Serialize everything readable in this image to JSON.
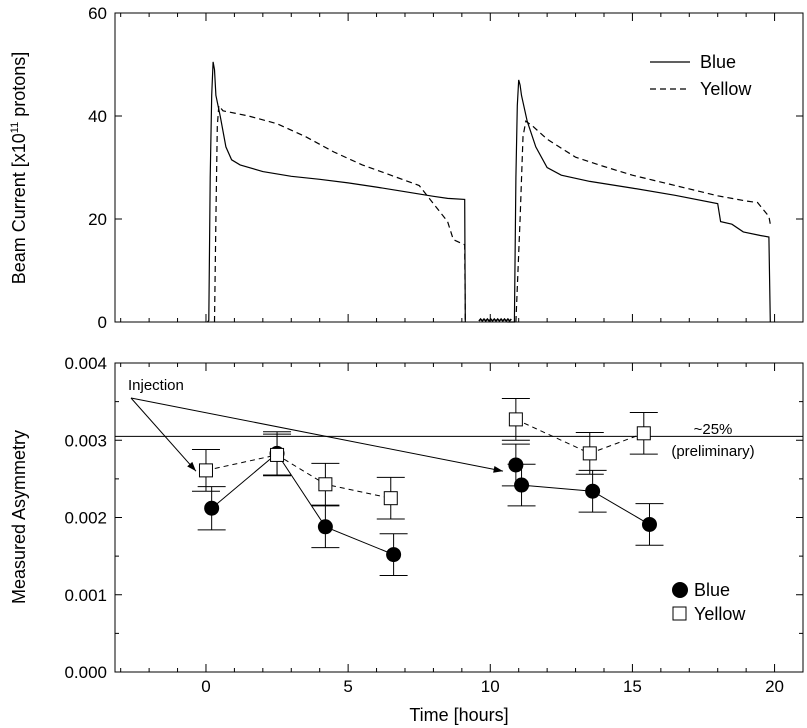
{
  "chart_data": [
    {
      "type": "line",
      "panel": "top",
      "ylabel": "Beam Current [x10",
      "ylabel_sup": "11",
      "ylabel_tail": " protons]",
      "xlim": [
        -3.2,
        21
      ],
      "ylim": [
        0,
        60
      ],
      "yticks": [
        "0",
        "20",
        "40",
        "60"
      ],
      "legend_position": "top-right",
      "series": [
        {
          "name": "Blue",
          "line_style": "solid",
          "points": [
            [
              0.05,
              0
            ],
            [
              0.1,
              0.3
            ],
            [
              0.15,
              28
            ],
            [
              0.2,
              44
            ],
            [
              0.25,
              50.5
            ],
            [
              0.3,
              49
            ],
            [
              0.35,
              44
            ],
            [
              0.5,
              40
            ],
            [
              0.7,
              34
            ],
            [
              0.9,
              31.5
            ],
            [
              1.2,
              30.5
            ],
            [
              2,
              29.2
            ],
            [
              3,
              28.3
            ],
            [
              4,
              27.7
            ],
            [
              5,
              27
            ],
            [
              6,
              26.2
            ],
            [
              7,
              25.3
            ],
            [
              8,
              24.4
            ],
            [
              8.5,
              24
            ],
            [
              9.1,
              23.8
            ],
            [
              9.12,
              0
            ]
          ]
        },
        {
          "name": "Yellow",
          "line_style": "dashed",
          "points": [
            [
              0.3,
              0
            ],
            [
              0.35,
              20
            ],
            [
              0.4,
              38
            ],
            [
              0.45,
              42
            ],
            [
              0.6,
              41
            ],
            [
              1.5,
              40
            ],
            [
              2.5,
              38.5
            ],
            [
              3.5,
              36
            ],
            [
              4.5,
              33
            ],
            [
              5.5,
              30.5
            ],
            [
              6.5,
              28.5
            ],
            [
              7.5,
              26.5
            ],
            [
              8,
              23
            ],
            [
              8.5,
              19.5
            ],
            [
              8.7,
              16
            ],
            [
              9.1,
              15
            ],
            [
              9.12,
              0
            ]
          ]
        },
        {
          "name": "Blue",
          "line_style": "solid",
          "points": [
            [
              10.6,
              0
            ],
            [
              10.85,
              0
            ],
            [
              10.9,
              28
            ],
            [
              10.95,
              42
            ],
            [
              11,
              47
            ],
            [
              11.05,
              46
            ],
            [
              11.1,
              44
            ],
            [
              11.3,
              39
            ],
            [
              11.6,
              34
            ],
            [
              12,
              30
            ],
            [
              12.5,
              28.5
            ],
            [
              13.5,
              27.3
            ],
            [
              15,
              26
            ],
            [
              16.5,
              24.6
            ],
            [
              18,
              23
            ],
            [
              18.1,
              19.5
            ],
            [
              18.5,
              19
            ],
            [
              18.9,
              17.5
            ],
            [
              19.5,
              16.8
            ],
            [
              19.8,
              16.5
            ],
            [
              19.85,
              0
            ]
          ]
        },
        {
          "name": "Yellow",
          "line_style": "dashed",
          "points": [
            [
              10.9,
              0
            ],
            [
              11.05,
              20
            ],
            [
              11.15,
              36
            ],
            [
              11.25,
              39
            ],
            [
              11.5,
              38
            ],
            [
              12,
              35.5
            ],
            [
              13,
              32
            ],
            [
              14,
              30.2
            ],
            [
              15,
              28.5
            ],
            [
              16.5,
              26.5
            ],
            [
              18,
              24.5
            ],
            [
              19,
              23.5
            ],
            [
              19.4,
              23.2
            ],
            [
              19.8,
              20.5
            ],
            [
              19.85,
              19
            ]
          ]
        }
      ],
      "noise_segment": {
        "x_start": 9.6,
        "x_end": 10.8
      }
    },
    {
      "type": "scatter",
      "panel": "bottom",
      "xlabel": "Time [hours]",
      "ylabel": "Measured Asymmetry",
      "xlim": [
        -3.2,
        21
      ],
      "ylim": [
        0,
        0.004
      ],
      "xticks": [
        "0",
        "5",
        "10",
        "15",
        "20"
      ],
      "yticks": [
        "0.000",
        "0.001",
        "0.002",
        "0.003",
        "0.004"
      ],
      "reference_line": {
        "y": 0.00305,
        "label_1": "~25%",
        "label_2": "(preliminary)"
      },
      "annotation": {
        "text": "Injection",
        "arrow_targets": [
          [
            0,
            0.0026
          ],
          [
            10.8,
            0.0026
          ]
        ]
      },
      "legend_position": "bottom-right",
      "series": [
        {
          "name": "Blue",
          "marker": "filled-circle",
          "points": [
            {
              "x": 0.2,
              "y": 0.00212,
              "err": 0.00028
            },
            {
              "x": 2.5,
              "y": 0.00283,
              "err": 0.00028
            },
            {
              "x": 4.2,
              "y": 0.00188,
              "err": 0.00027
            },
            {
              "x": 6.6,
              "y": 0.00152,
              "err": 0.00027
            },
            {
              "x": 10.9,
              "y": 0.00268,
              "err": 0.00027
            },
            {
              "x": 11.1,
              "y": 0.00242,
              "err": 0.00027
            },
            {
              "x": 13.6,
              "y": 0.00234,
              "err": 0.00027
            },
            {
              "x": 15.6,
              "y": 0.00191,
              "err": 0.00027
            }
          ]
        },
        {
          "name": "Yellow",
          "marker": "open-square",
          "points": [
            {
              "x": 0.0,
              "y": 0.00261,
              "err": 0.00027
            },
            {
              "x": 2.5,
              "y": 0.00281,
              "err": 0.00027
            },
            {
              "x": 4.2,
              "y": 0.00243,
              "err": 0.00027
            },
            {
              "x": 6.5,
              "y": 0.00225,
              "err": 0.00027
            },
            {
              "x": 10.9,
              "y": 0.00327,
              "err": 0.00027
            },
            {
              "x": 13.5,
              "y": 0.00283,
              "err": 0.00027
            },
            {
              "x": 15.4,
              "y": 0.00309,
              "err": 0.00027
            }
          ]
        }
      ]
    }
  ],
  "legends": {
    "top": [
      {
        "label": "Blue",
        "style": "solid"
      },
      {
        "label": "Yellow",
        "style": "dashed"
      }
    ],
    "bottom": [
      {
        "label": "Blue",
        "marker": "filled-circle"
      },
      {
        "label": "Yellow",
        "marker": "open-square"
      }
    ]
  }
}
